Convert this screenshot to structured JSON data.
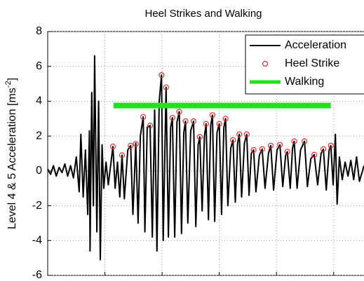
{
  "chart_data": {
    "type": "line",
    "title": "Heel Strikes and Walking",
    "y_label": {
      "text": "Level 4 & 5 Acceleration [ms",
      "superscript": "-2",
      "suffix": "]"
    },
    "xlim": [
      0,
      5.53
    ],
    "xticks": [
      1,
      2,
      3,
      4,
      5
    ],
    "ylim": [
      -6,
      8
    ],
    "yticks": [
      -6,
      -4,
      -2,
      0,
      2,
      4,
      6,
      8
    ],
    "grid": true,
    "legend": "upper right",
    "series": [
      {
        "name": "Acceleration",
        "color": "#000000",
        "style": "line",
        "x": [
          0.0,
          0.05,
          0.1,
          0.15,
          0.2,
          0.25,
          0.3,
          0.35,
          0.4,
          0.45,
          0.5,
          0.55,
          0.58,
          0.62,
          0.66,
          0.7,
          0.73,
          0.74,
          0.77,
          0.8,
          0.82,
          0.86,
          0.89,
          0.92,
          0.95,
          0.98,
          1.02,
          1.06,
          1.1,
          1.14,
          1.18,
          1.22,
          1.26,
          1.3,
          1.34,
          1.4,
          1.45,
          1.49,
          1.54,
          1.58,
          1.62,
          1.67,
          1.7,
          1.74,
          1.79,
          1.83,
          1.87,
          1.91,
          1.95,
          1.99,
          2.02,
          2.07,
          2.11,
          2.15,
          2.18,
          2.22,
          2.26,
          2.3,
          2.34,
          2.38,
          2.41,
          2.45,
          2.5,
          2.55,
          2.59,
          2.63,
          2.66,
          2.7,
          2.74,
          2.77,
          2.81,
          2.85,
          2.88,
          2.92,
          2.96,
          3.0,
          3.04,
          3.08,
          3.11,
          3.15,
          3.2,
          3.24,
          3.28,
          3.32,
          3.35,
          3.39,
          3.44,
          3.48,
          3.52,
          3.56,
          3.6,
          3.64,
          3.7,
          3.75,
          3.8,
          3.86,
          3.9,
          3.95,
          4.01,
          4.06,
          4.11,
          4.16,
          4.19,
          4.24,
          4.28,
          4.31,
          4.36,
          4.42,
          4.49,
          4.54,
          4.6,
          4.66,
          4.72,
          4.78,
          4.82,
          4.87,
          4.92,
          4.95,
          4.99,
          5.03,
          5.06,
          5.1,
          5.15,
          5.2,
          5.25,
          5.3,
          5.35,
          5.4,
          5.45,
          5.53
        ],
        "values": [
          0.1,
          -0.2,
          0.3,
          -0.3,
          0.2,
          -0.1,
          0.4,
          -0.3,
          0.3,
          -0.4,
          0.8,
          -1.2,
          2.1,
          -1.5,
          1.2,
          -2.5,
          2.3,
          -4.6,
          4.5,
          -2.0,
          6.6,
          -3.5,
          4.0,
          -5.1,
          1.5,
          -1.0,
          0.5,
          -0.8,
          0.3,
          1.4,
          -1.0,
          0.5,
          -1.5,
          0.9,
          -1.6,
          1.2,
          1.45,
          -2.5,
          1.6,
          -3.0,
          2.0,
          3.1,
          -3.5,
          2.5,
          2.6,
          -3.8,
          3.5,
          -4.6,
          4.0,
          5.5,
          -4.0,
          4.8,
          -3.8,
          2.5,
          3.05,
          -3.8,
          2.8,
          3.4,
          -3.6,
          2.2,
          2.85,
          -3.0,
          2.3,
          2.85,
          -3.2,
          1.5,
          1.95,
          -2.3,
          2.0,
          2.7,
          -2.8,
          2.6,
          3.2,
          -2.9,
          2.2,
          2.7,
          -2.5,
          2.5,
          3.0,
          -2.0,
          1.3,
          1.77,
          -1.8,
          1.6,
          2.1,
          -1.5,
          1.6,
          2.1,
          -1.4,
          1.0,
          1.2,
          -1.2,
          0.9,
          1.25,
          -1.0,
          1.0,
          1.45,
          -1.1,
          1.2,
          1.5,
          -0.9,
          0.9,
          1.1,
          -1.0,
          1.3,
          1.7,
          -1.0,
          1.2,
          1.7,
          -0.9,
          0.7,
          0.93,
          -0.8,
          1.0,
          1.25,
          -1.1,
          1.2,
          1.45,
          -0.8,
          2.1,
          -1.9,
          0.8,
          -0.5,
          0.5,
          -0.3,
          0.6,
          -0.5,
          0.8,
          -0.6,
          0.3
        ]
      },
      {
        "name": "Heel Strike",
        "color": "#e03030",
        "style": "marker",
        "x": [
          1.14,
          1.3,
          1.45,
          1.54,
          1.67,
          1.79,
          1.99,
          2.07,
          2.18,
          2.3,
          2.41,
          2.55,
          2.66,
          2.77,
          2.88,
          3.0,
          3.11,
          3.24,
          3.35,
          3.48,
          3.6,
          3.75,
          3.9,
          4.06,
          4.19,
          4.31,
          4.49,
          4.66,
          4.82,
          4.95
        ],
        "values": [
          1.4,
          0.9,
          1.45,
          1.55,
          3.1,
          2.6,
          5.5,
          4.8,
          3.05,
          3.4,
          2.85,
          2.85,
          1.95,
          2.7,
          3.2,
          2.7,
          3.0,
          1.77,
          2.1,
          2.1,
          1.2,
          1.25,
          1.45,
          1.5,
          1.1,
          1.7,
          1.7,
          0.93,
          1.25,
          1.45
        ]
      },
      {
        "name": "Walking",
        "color": "#22e022",
        "style": "thick",
        "x": [
          1.15,
          4.95
        ],
        "values": [
          3.75,
          3.75
        ]
      }
    ]
  }
}
